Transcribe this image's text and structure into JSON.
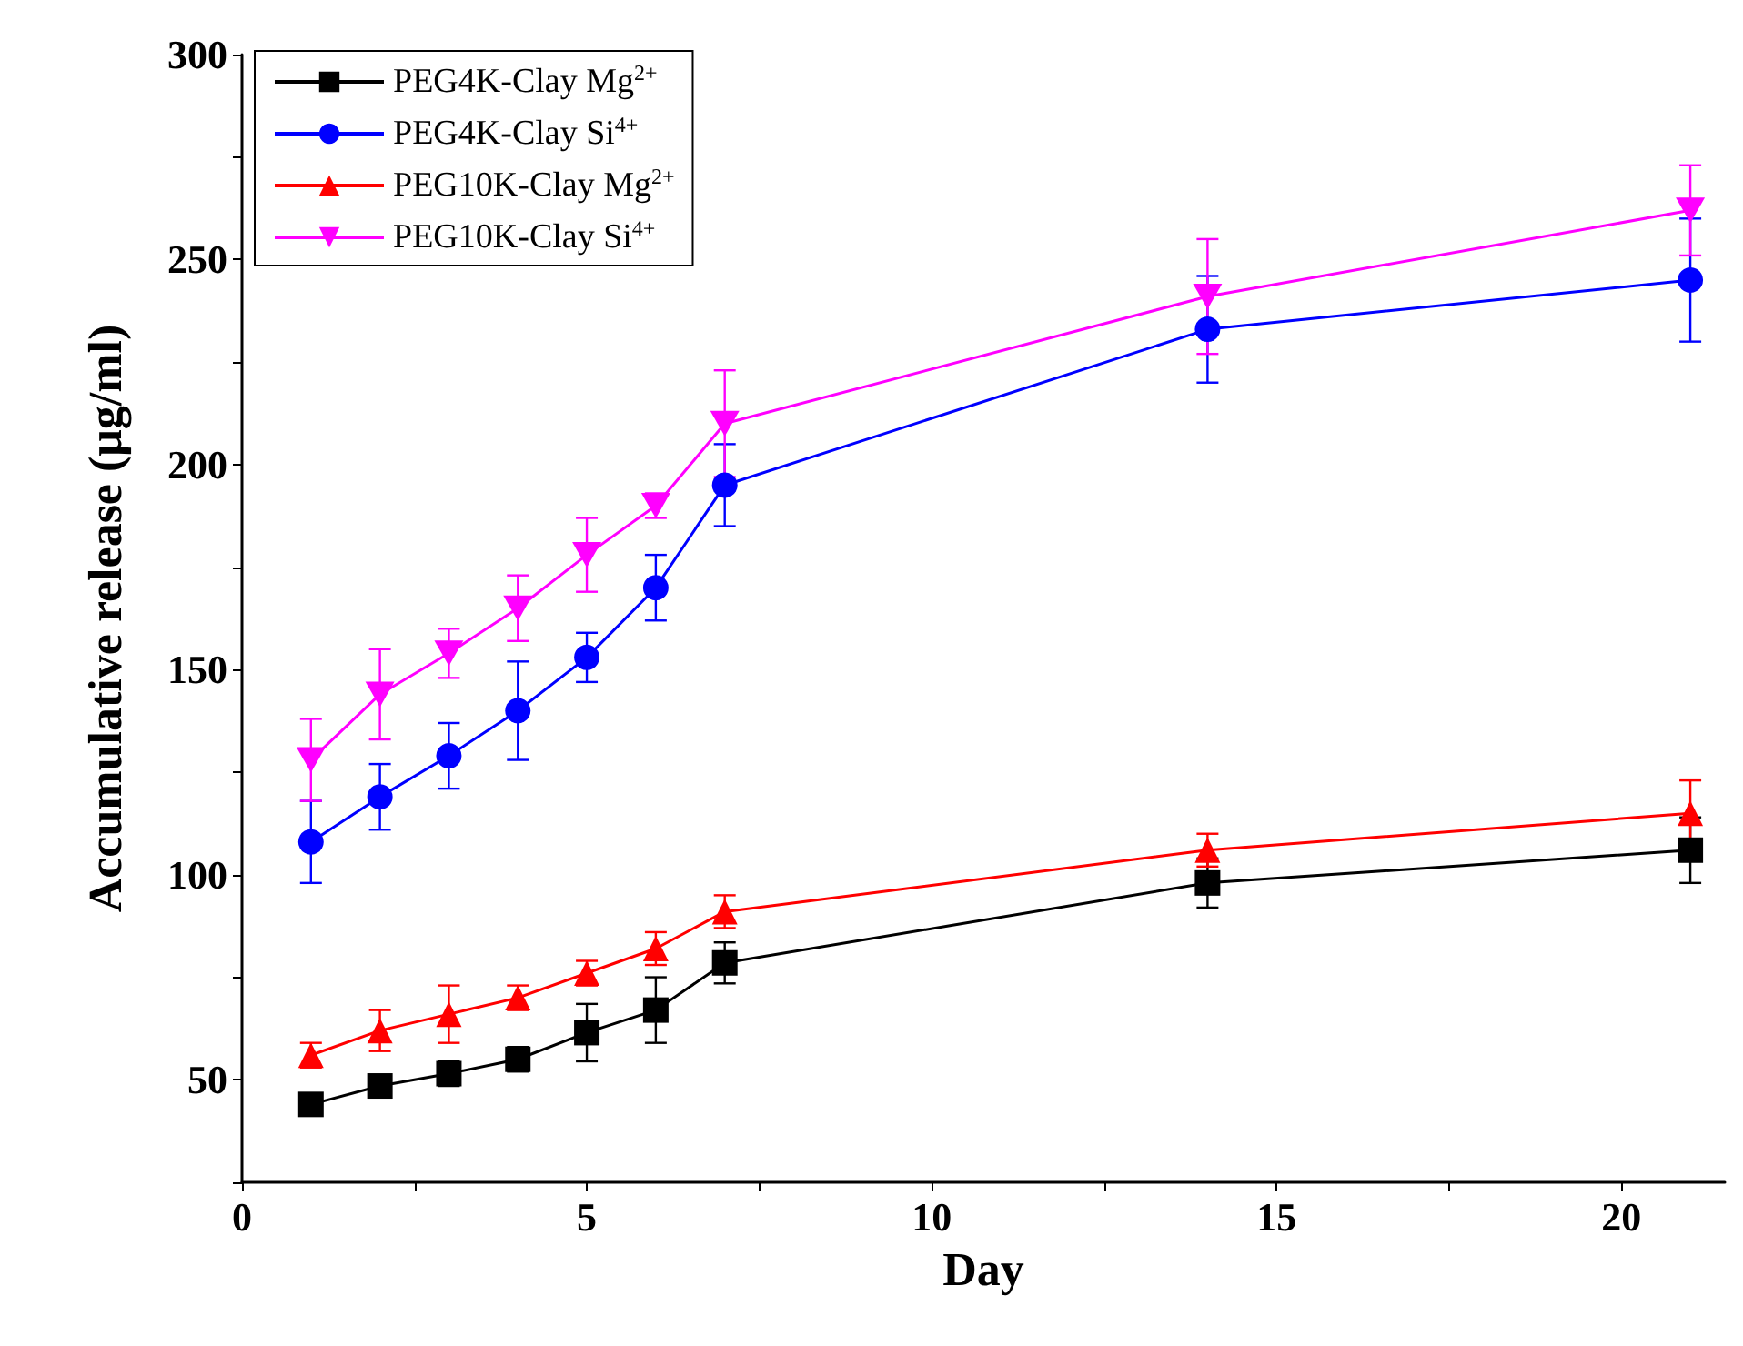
{
  "chart_data": {
    "type": "line",
    "xlabel": "Day",
    "ylabel": "Accumulative release (μg/ml)",
    "x": [
      1,
      2,
      3,
      4,
      5,
      6,
      7,
      14,
      21
    ],
    "series": [
      {
        "name": "PEG4K-Clay Mg$^{2+}$",
        "color": "#000000",
        "marker": "square",
        "values": [
          44,
          48.5,
          51.5,
          55,
          61.5,
          67,
          78.5,
          98,
          106
        ],
        "errors": [
          2,
          2,
          3,
          3,
          7,
          8,
          5,
          6,
          8
        ]
      },
      {
        "name": "PEG4K-Clay Si$^{4+}$",
        "color": "#0000ff",
        "marker": "circle",
        "values": [
          108,
          119,
          129,
          140,
          153,
          170,
          195,
          233,
          245
        ],
        "errors": [
          10,
          8,
          8,
          12,
          6,
          8,
          10,
          13,
          15
        ]
      },
      {
        "name": "PEG10K-Clay Mg$^{2+}$",
        "color": "#ff0000",
        "marker": "triangle",
        "values": [
          56,
          62,
          66,
          70,
          76,
          82,
          91,
          106,
          115
        ],
        "errors": [
          3,
          5,
          7,
          3,
          3,
          4,
          4,
          4,
          8
        ]
      },
      {
        "name": "PEG10K-Clay Si$^{4+}$",
        "color": "#ff00ff",
        "marker": "triangle-down",
        "values": [
          128,
          144,
          154,
          165,
          178,
          190,
          210,
          241,
          262
        ],
        "errors": [
          10,
          11,
          6,
          8,
          9,
          3,
          13,
          14,
          11
        ]
      }
    ],
    "xlim": [
      0,
      21.5
    ],
    "xticks": [
      0,
      {
        "value": 2.5,
        "label": null
      },
      5,
      {
        "value": 7.5,
        "label": null
      },
      10,
      {
        "value": 12.5,
        "label": null
      },
      15,
      {
        "value": 17.5,
        "label": null
      },
      20
    ],
    "ylim": [
      25,
      300
    ],
    "yticks": [
      {
        "value": 25,
        "label": null
      },
      50,
      {
        "value": 75,
        "label": null
      },
      100,
      {
        "value": 125,
        "label": null
      },
      150,
      {
        "value": 175,
        "label": null
      },
      200,
      {
        "value": 225,
        "label": null
      },
      250,
      {
        "value": 275,
        "label": null
      },
      300
    ],
    "grid": false,
    "legend": "top left",
    "line_style": "solid"
  }
}
